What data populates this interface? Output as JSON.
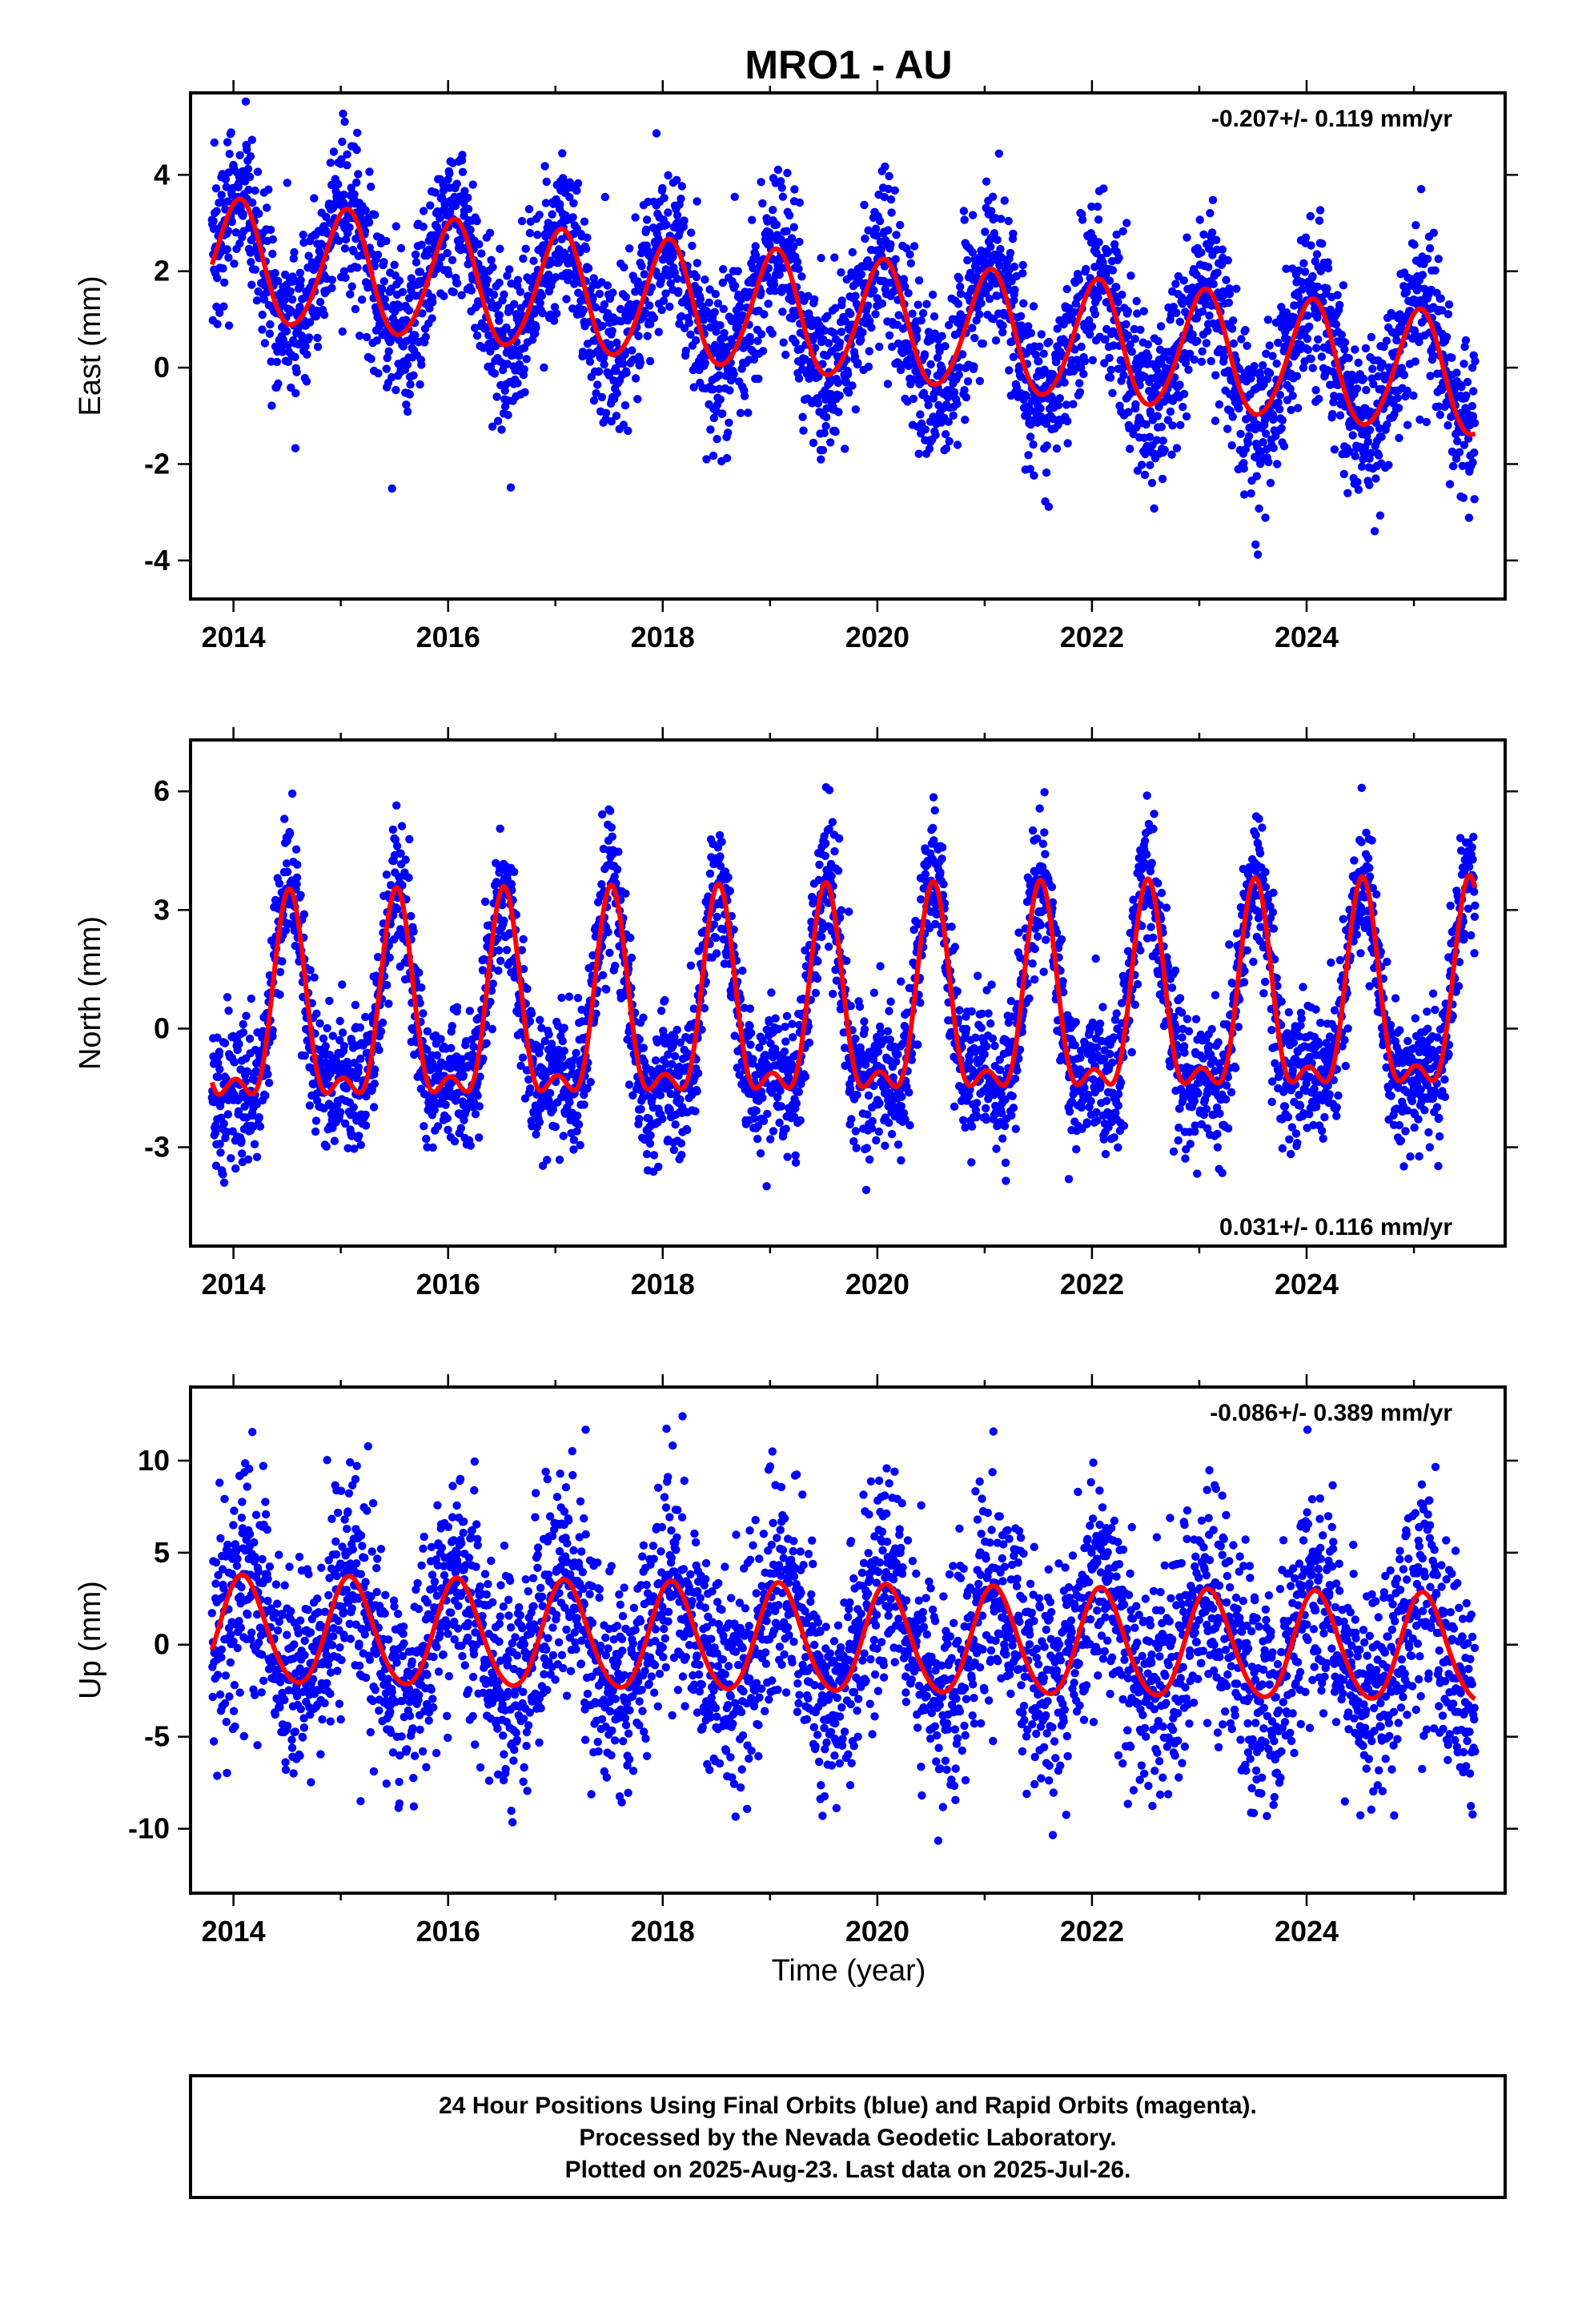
{
  "title": "MRO1 - AU",
  "xlabel": "Time (year)",
  "footer": {
    "line1": "24 Hour Positions Using Final Orbits (blue) and Rapid Orbits (magenta).",
    "line2": "Processed by the Nevada Geodetic Laboratory.",
    "line3": "Plotted on 2025-Aug-23. Last data on 2025-Jul-26."
  },
  "colors": {
    "final_orbits": "#0000ff",
    "model_fit": "#ff0000",
    "axes": "#000000"
  },
  "chart_data": [
    {
      "type": "scatter",
      "ylabel": "East (mm)",
      "rate_text": "-0.207+/- 0.119 mm/yr",
      "rate_position": "top-right",
      "xlim": [
        2013.6,
        2025.85
      ],
      "ylim": [
        -4.8,
        5.7
      ],
      "xticks": [
        2014,
        2016,
        2018,
        2020,
        2022,
        2024
      ],
      "yticks": [
        -4,
        -2,
        0,
        2,
        4
      ],
      "grid": false,
      "date_range": [
        2013.8,
        2025.57
      ],
      "model": {
        "offset": 1.0,
        "trend_mm_per_yr": -0.207,
        "annual_amp": 1.25,
        "annual_peak_phase": 0.05,
        "semiannual_amp": 0.1,
        "semiannual_peak_phase": 0.1
      },
      "scatter_std_mm": 0.85,
      "series": [
        {
          "kind": "points",
          "color": "#0000ff",
          "n_points": 3700
        },
        {
          "kind": "fit",
          "color": "#ff0000"
        }
      ]
    },
    {
      "type": "scatter",
      "ylabel": "North (mm)",
      "rate_text": "0.031+/- 0.116 mm/yr",
      "rate_position": "bottom-right",
      "xlim": [
        2013.6,
        2025.85
      ],
      "ylim": [
        -5.5,
        7.3
      ],
      "xticks": [
        2014,
        2016,
        2018,
        2020,
        2022,
        2024
      ],
      "yticks": [
        -3,
        0,
        3,
        6
      ],
      "grid": false,
      "date_range": [
        2013.8,
        2025.57
      ],
      "model": {
        "offset": 0.25,
        "trend_mm_per_yr": 0.031,
        "annual_amp": 2.4,
        "annual_peak_phase": 0.52,
        "semiannual_amp": 1.05,
        "semiannual_peak_phase": 0.02
      },
      "scatter_std_mm": 0.9,
      "series": [
        {
          "kind": "points",
          "color": "#0000ff",
          "n_points": 3700
        },
        {
          "kind": "fit",
          "color": "#ff0000"
        }
      ]
    },
    {
      "type": "scatter",
      "ylabel": "Up (mm)",
      "rate_text": "-0.086+/- 0.389 mm/yr",
      "rate_position": "top-right",
      "xlim": [
        2013.6,
        2025.85
      ],
      "ylim": [
        -13.5,
        14
      ],
      "xticks": [
        2014,
        2016,
        2018,
        2020,
        2022,
        2024
      ],
      "yticks": [
        -10,
        -5,
        0,
        5,
        10
      ],
      "grid": false,
      "date_range": [
        2013.8,
        2025.57
      ],
      "model": {
        "offset": 0.2,
        "trend_mm_per_yr": -0.086,
        "annual_amp": 2.9,
        "annual_peak_phase": 0.09,
        "semiannual_amp": 0.25,
        "semiannual_peak_phase": 0.05
      },
      "scatter_std_mm": 3.0,
      "series": [
        {
          "kind": "points",
          "color": "#0000ff",
          "n_points": 3700
        },
        {
          "kind": "fit",
          "color": "#ff0000"
        }
      ]
    }
  ]
}
